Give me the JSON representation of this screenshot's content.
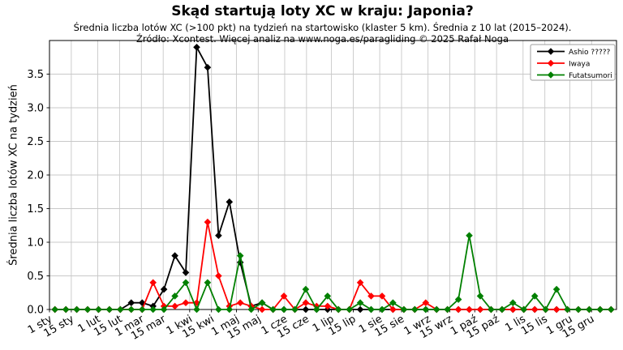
{
  "chart_data": {
    "type": "line",
    "title": "Skąd startują loty XC w kraju: Japonia?",
    "subtitle": "Średnia liczba lotów XC (>100 pkt) na tydzień na startowisko (klaster 5 km). Średnia z 10 lat (2015–2024).",
    "source_note": "Źródło: Xcontest. Więcej analiz na www.noga.es/paragliding © 2025 Rafał Noga",
    "ylabel": "Średnia liczba lotów XC na tydzień",
    "xlabel": "",
    "ylim": [
      0,
      4.0
    ],
    "yticks": [
      0.0,
      0.5,
      1.0,
      1.5,
      2.0,
      2.5,
      3.0,
      3.5
    ],
    "grid": true,
    "grid_color": "#c8c8c8",
    "legend_position": "upper right",
    "legend_border_color": "#9e9e9e",
    "x_unit": "weeks of the year, one point per week",
    "x_range_days": 364,
    "week_center_offset": 3.5,
    "x_ticks": [
      {
        "label": "1 sty",
        "day": 0
      },
      {
        "label": "15 sty",
        "day": 14
      },
      {
        "label": "1 lut",
        "day": 31
      },
      {
        "label": "15 lut",
        "day": 45
      },
      {
        "label": "1 mar",
        "day": 59
      },
      {
        "label": "15 mar",
        "day": 73
      },
      {
        "label": "1 kwi",
        "day": 90
      },
      {
        "label": "15 kwi",
        "day": 104
      },
      {
        "label": "1 maj",
        "day": 120
      },
      {
        "label": "15 maj",
        "day": 134
      },
      {
        "label": "1 cze",
        "day": 151
      },
      {
        "label": "15 cze",
        "day": 165
      },
      {
        "label": "1 lip",
        "day": 181
      },
      {
        "label": "15 lip",
        "day": 195
      },
      {
        "label": "1 sie",
        "day": 212
      },
      {
        "label": "15 sie",
        "day": 226
      },
      {
        "label": "1 wrz",
        "day": 243
      },
      {
        "label": "15 wrz",
        "day": 257
      },
      {
        "label": "1 paź",
        "day": 273
      },
      {
        "label": "15 paź",
        "day": 287
      },
      {
        "label": "1 lis",
        "day": 304
      },
      {
        "label": "15 lis",
        "day": 318
      },
      {
        "label": "1 gru",
        "day": 334
      },
      {
        "label": "15 gru",
        "day": 348
      }
    ],
    "series": [
      {
        "name": "Ashio ?????",
        "color": "#000000",
        "marker": "diamond",
        "values": [
          0,
          0,
          0,
          0,
          0,
          0,
          0,
          0.1,
          0.1,
          0.05,
          0.3,
          0.8,
          0.55,
          3.9,
          3.6,
          1.1,
          1.6,
          0.7,
          0.05,
          0.1,
          0,
          0,
          0,
          0,
          0,
          0,
          0,
          0,
          0,
          0,
          0,
          0,
          0,
          0,
          0,
          0,
          0,
          0,
          0,
          0,
          0,
          0,
          0,
          0,
          0,
          0,
          0,
          0,
          0,
          0,
          0,
          0
        ]
      },
      {
        "name": "Iwaya",
        "color": "#ff0000",
        "marker": "diamond",
        "values": [
          0,
          0,
          0,
          0,
          0,
          0,
          0,
          0,
          0,
          0.4,
          0.05,
          0.05,
          0.1,
          0.1,
          1.3,
          0.5,
          0.05,
          0.1,
          0.05,
          0,
          0,
          0.2,
          0,
          0.1,
          0.05,
          0.05,
          0,
          0,
          0.4,
          0.2,
          0.2,
          0,
          0,
          0,
          0.1,
          0,
          0,
          0,
          0,
          0,
          0,
          0,
          0,
          0,
          0,
          0,
          0,
          0,
          0,
          0,
          0,
          0
        ]
      },
      {
        "name": "Futatsumori",
        "color": "#008000",
        "marker": "diamond",
        "values": [
          0,
          0,
          0,
          0,
          0,
          0,
          0,
          0,
          0,
          0,
          0,
          0.2,
          0.4,
          0,
          0.4,
          0,
          0,
          0.8,
          0,
          0.1,
          0,
          0,
          0,
          0.3,
          0,
          0.2,
          0,
          0,
          0.1,
          0,
          0,
          0.1,
          0,
          0,
          0,
          0,
          0,
          0.15,
          1.1,
          0.2,
          0,
          0,
          0.1,
          0,
          0.2,
          0,
          0.3,
          0,
          0,
          0,
          0,
          0
        ]
      }
    ]
  }
}
